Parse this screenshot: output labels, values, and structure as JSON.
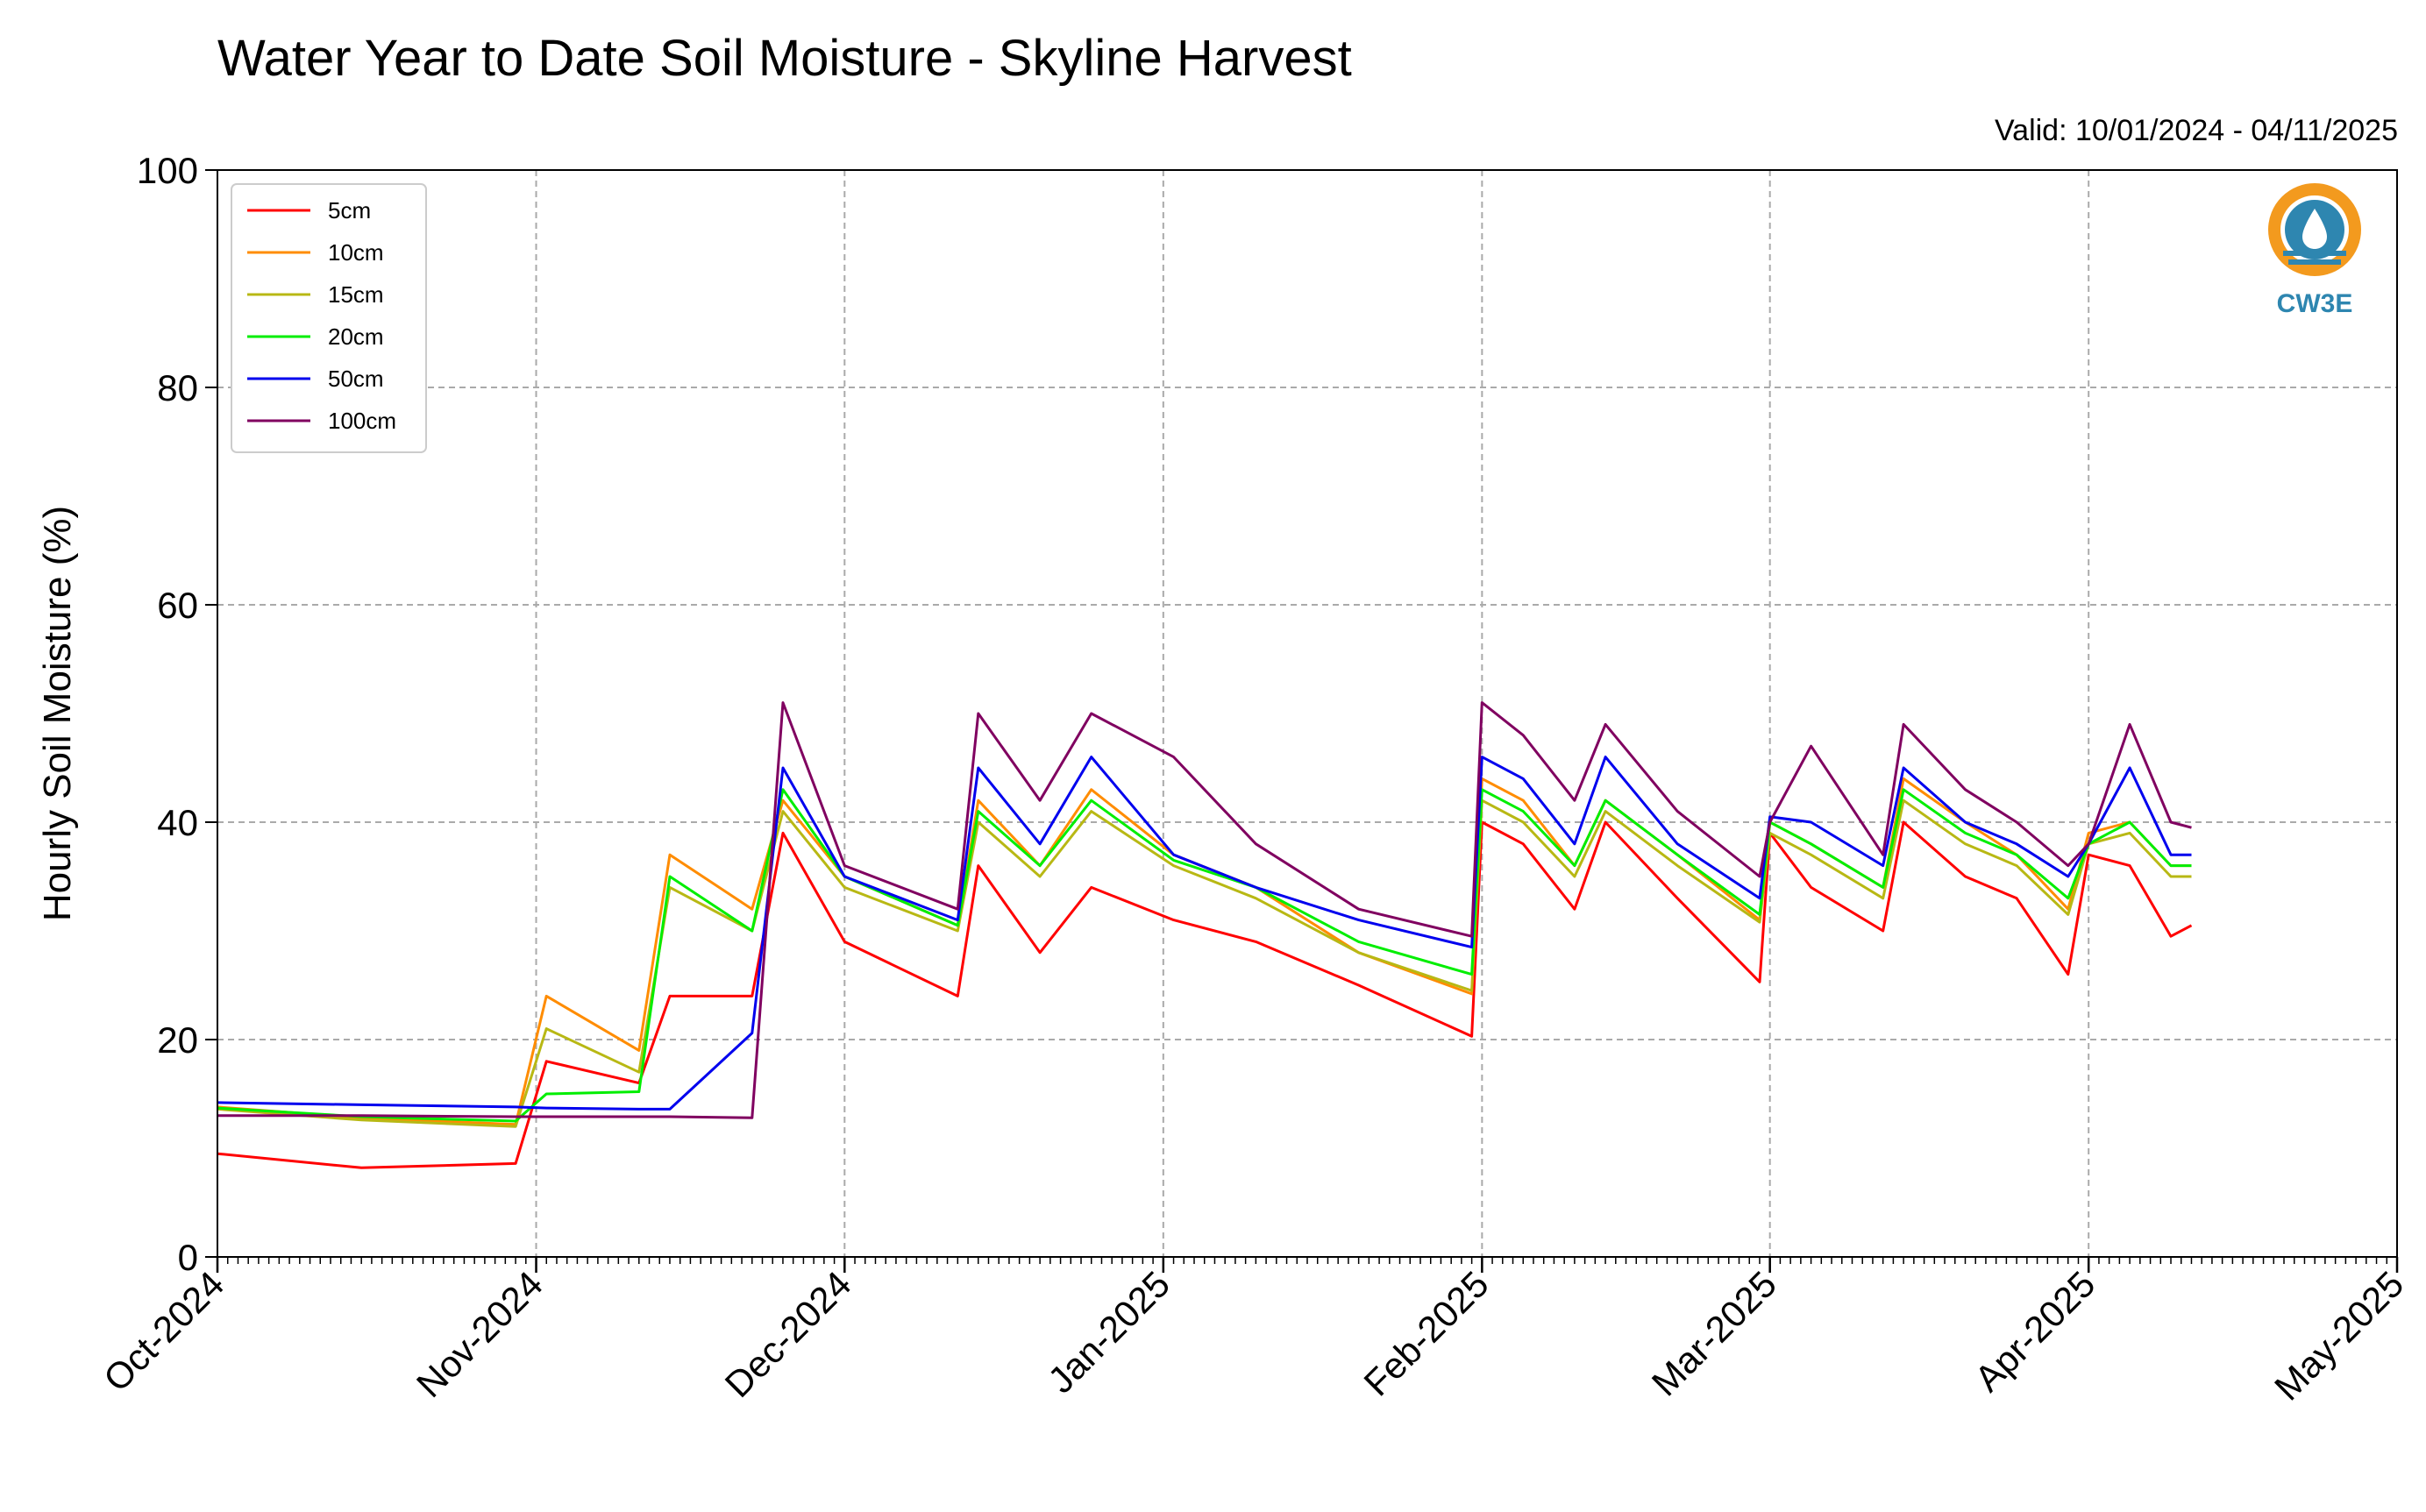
{
  "chart_data": {
    "type": "line",
    "title": "Water Year to Date Soil Moisture - Skyline Harvest",
    "subtitle": "Valid: 10/01/2024 - 04/11/2025",
    "xlabel": "",
    "ylabel": "Hourly Soil Moisture (%)",
    "ylim": [
      0,
      100
    ],
    "yticks": [
      0,
      20,
      40,
      60,
      80,
      100
    ],
    "xlim": [
      "2024-10-01",
      "2025-05-01"
    ],
    "xticks": [
      {
        "date": "2024-10-01",
        "label": "Oct-2024"
      },
      {
        "date": "2024-11-01",
        "label": "Nov-2024"
      },
      {
        "date": "2024-12-01",
        "label": "Dec-2024"
      },
      {
        "date": "2025-01-01",
        "label": "Jan-2025"
      },
      {
        "date": "2025-02-01",
        "label": "Feb-2025"
      },
      {
        "date": "2025-03-01",
        "label": "Mar-2025"
      },
      {
        "date": "2025-04-01",
        "label": "Apr-2025"
      },
      {
        "date": "2025-05-01",
        "label": "May-2025"
      }
    ],
    "grid": true,
    "legend_position": "top-left",
    "x": [
      "2024-10-01",
      "2024-10-15",
      "2024-10-30",
      "2024-11-02",
      "2024-11-11",
      "2024-11-14",
      "2024-11-22",
      "2024-11-25",
      "2024-12-01",
      "2024-12-12",
      "2024-12-14",
      "2024-12-20",
      "2024-12-25",
      "2025-01-02",
      "2025-01-10",
      "2025-01-20",
      "2025-01-31",
      "2025-02-01",
      "2025-02-05",
      "2025-02-10",
      "2025-02-13",
      "2025-02-20",
      "2025-02-28",
      "2025-03-01",
      "2025-03-05",
      "2025-03-12",
      "2025-03-14",
      "2025-03-20",
      "2025-03-25",
      "2025-03-30",
      "2025-04-01",
      "2025-04-05",
      "2025-04-09",
      "2025-04-11"
    ],
    "series": [
      {
        "name": "5cm",
        "color": "#ff0000",
        "values": [
          9.5,
          8.2,
          8.6,
          18,
          16,
          24,
          24,
          39,
          29,
          24,
          36,
          28,
          34,
          31,
          29,
          25,
          20.3,
          40,
          38,
          32,
          40,
          33,
          25.3,
          39,
          34,
          30,
          40,
          35,
          33,
          26,
          37,
          36,
          29.5,
          30.5
        ]
      },
      {
        "name": "10cm",
        "color": "#ff8c00",
        "values": [
          13.8,
          12.8,
          12.2,
          24,
          19,
          37,
          32,
          42,
          35,
          30.5,
          42,
          36,
          43,
          37,
          34,
          28,
          24.2,
          44,
          42,
          36,
          42,
          37,
          31,
          40,
          38,
          34,
          44,
          40,
          37,
          32,
          39,
          40,
          36,
          36
        ]
      },
      {
        "name": "15cm",
        "color": "#b8b814",
        "values": [
          13.6,
          12.6,
          12.0,
          21,
          17,
          34,
          30,
          41,
          34,
          30,
          40,
          35,
          41,
          36,
          33,
          28,
          24.5,
          42,
          40,
          35,
          41,
          36,
          30.8,
          39,
          37,
          33,
          42,
          38,
          36,
          31.5,
          38,
          39,
          35,
          35
        ]
      },
      {
        "name": "20cm",
        "color": "#00ee00",
        "values": [
          13.7,
          12.9,
          12.5,
          15,
          15.2,
          35,
          30,
          43,
          35,
          30.5,
          41,
          36,
          42,
          36.5,
          34,
          29,
          26,
          43,
          41,
          36,
          42,
          37,
          31.5,
          40,
          38,
          34,
          43,
          39,
          37,
          33,
          38,
          40,
          36,
          36
        ]
      },
      {
        "name": "50cm",
        "color": "#0000ee",
        "values": [
          14.2,
          14.0,
          13.8,
          13.7,
          13.6,
          13.6,
          20.6,
          45,
          35,
          31,
          45,
          38,
          46,
          37,
          34,
          31,
          28.5,
          46,
          44,
          38,
          46,
          38,
          33,
          40.5,
          40,
          36,
          45,
          40,
          38,
          35,
          38,
          45,
          37,
          37
        ]
      },
      {
        "name": "100cm",
        "color": "#800060",
        "values": [
          13.0,
          13.0,
          12.9,
          12.9,
          12.9,
          12.9,
          12.8,
          51,
          36,
          32,
          50,
          42,
          50,
          46,
          38,
          32,
          29.5,
          51,
          48,
          42,
          49,
          41,
          35,
          40,
          47,
          37,
          49,
          43,
          40,
          36,
          38,
          49,
          40,
          39.5
        ]
      }
    ]
  },
  "logo": {
    "text": "CW3E",
    "icon": "water-drop-sun-icon",
    "color": "#2e86b0",
    "accent": "#f39a1e"
  }
}
